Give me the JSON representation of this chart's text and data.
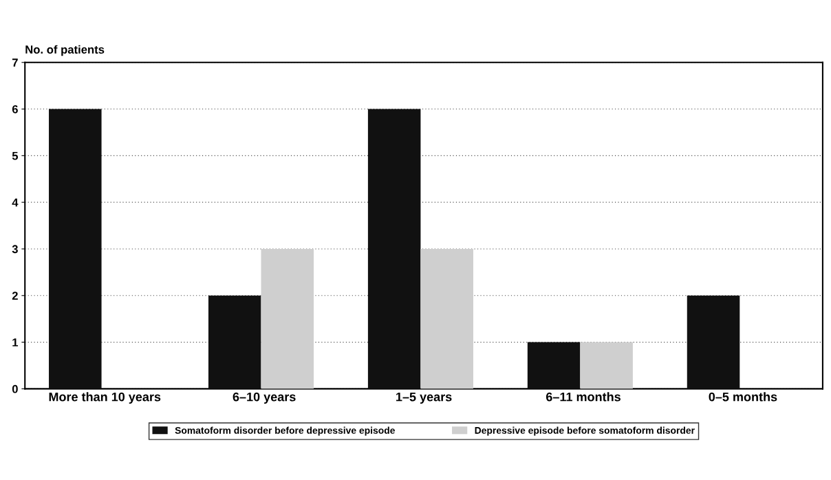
{
  "chart_data": {
    "type": "bar",
    "ylabel": "No. of patients",
    "categories": [
      "More than 10 years",
      "6–10 years",
      "1–5 years",
      "6–11 months",
      "0–5 months"
    ],
    "series": [
      {
        "name": "Somatoform disorder before depressive episode",
        "color": "#111111",
        "values": [
          6,
          2,
          6,
          1,
          2
        ]
      },
      {
        "name": "Depressive episode before somatoform disorder",
        "color": "#cfcfcf",
        "values": [
          null,
          3,
          3,
          1,
          null
        ]
      }
    ],
    "ylim": [
      0,
      7
    ],
    "yticks": [
      0,
      1,
      2,
      3,
      4,
      5,
      6,
      7
    ],
    "grid": "y",
    "legend": "bottom"
  }
}
